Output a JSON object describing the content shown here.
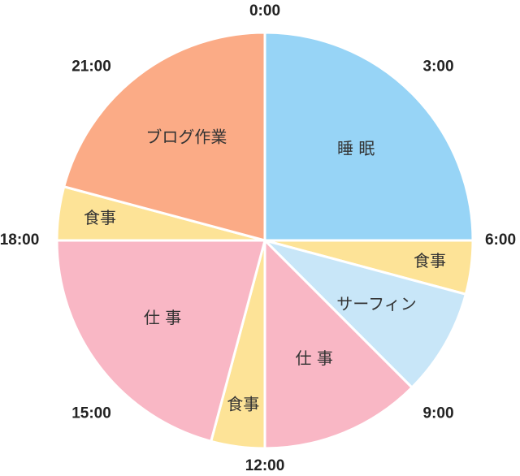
{
  "chart_data": {
    "type": "pie",
    "title": "",
    "unit": "hours",
    "start_angle_deg": 0,
    "direction": "clockwise",
    "slices": [
      {
        "label": "睡 眠",
        "start": 0,
        "end": 6,
        "value": 6,
        "color": "#97d4f6"
      },
      {
        "label": "食事",
        "start": 6,
        "end": 7,
        "value": 1,
        "color": "#fde397"
      },
      {
        "label": "サーフィン",
        "start": 7,
        "end": 9,
        "value": 2,
        "color": "#c8e6f8"
      },
      {
        "label": "仕 事",
        "start": 9,
        "end": 12,
        "value": 3,
        "color": "#f9b7c5"
      },
      {
        "label": "食事",
        "start": 12,
        "end": 13,
        "value": 1,
        "color": "#fde397"
      },
      {
        "label": "仕 事",
        "start": 13,
        "end": 18,
        "value": 5,
        "color": "#f9b7c5"
      },
      {
        "label": "食事",
        "start": 18,
        "end": 19,
        "value": 1,
        "color": "#fde397"
      },
      {
        "label": "ブログ作業",
        "start": 19,
        "end": 24,
        "value": 5,
        "color": "#fbab86"
      }
    ],
    "tick_labels": [
      {
        "text": "0:00",
        "hour": 0
      },
      {
        "text": "3:00",
        "hour": 3
      },
      {
        "text": "6:00",
        "hour": 6
      },
      {
        "text": "9:00",
        "hour": 9
      },
      {
        "text": "12:00",
        "hour": 12
      },
      {
        "text": "15:00",
        "hour": 15
      },
      {
        "text": "18:00",
        "hour": 18
      },
      {
        "text": "21:00",
        "hour": 21
      }
    ]
  }
}
